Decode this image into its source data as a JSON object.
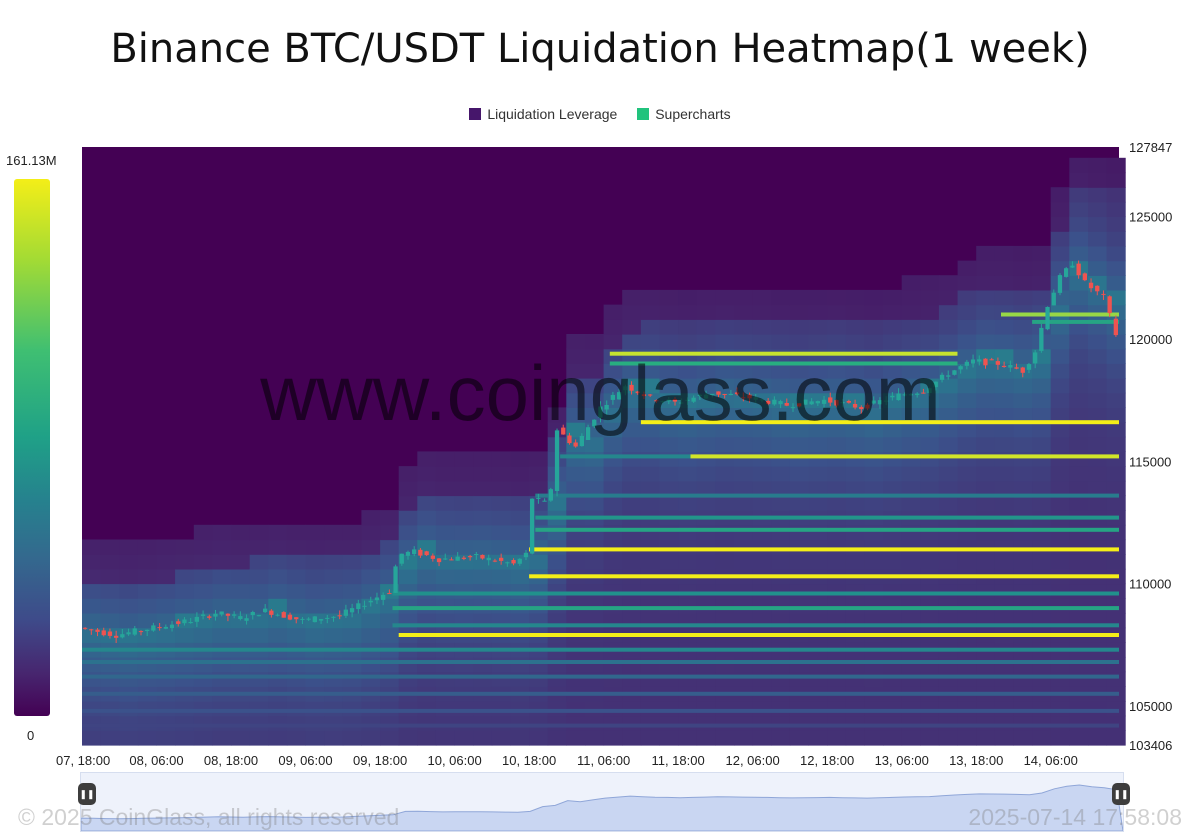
{
  "title": "Binance BTC/USDT Liquidation Heatmap(1 week)",
  "legend": [
    {
      "label": "Liquidation Leverage",
      "color": "#46166b"
    },
    {
      "label": "Supercharts",
      "color": "#21c37d"
    }
  ],
  "color_scale": {
    "max_label": "161.13M",
    "min_label": "0"
  },
  "watermark": "www.coinglass.com",
  "footer": {
    "copyright": "© 2025 CoinGlass, all rights reserved",
    "timestamp": "2025-07-14 17:58:08"
  },
  "colors": {
    "background": "#440154",
    "bull": "#26a69a",
    "bear": "#ef5350",
    "highlight": "#f4ee18"
  },
  "chart_data": {
    "type": "heatmap",
    "title": "Binance BTC/USDT Liquidation Heatmap(1 week)",
    "y_ticks": [
      "127847",
      "125000",
      "120000",
      "115000",
      "110000",
      "105000",
      "103406"
    ],
    "ylim": [
      103406,
      127847
    ],
    "x_ticks": [
      "07, 18:00",
      "08, 06:00",
      "08, 18:00",
      "09, 06:00",
      "09, 18:00",
      "10, 06:00",
      "10, 18:00",
      "11, 06:00",
      "11, 18:00",
      "12, 06:00",
      "12, 18:00",
      "13, 06:00",
      "13, 18:00",
      "14, 06:00"
    ],
    "x_tick_positions": [
      0,
      12,
      24,
      36,
      48,
      60,
      72,
      84,
      96,
      108,
      120,
      132,
      144,
      156
    ],
    "x_range_hours": [
      0,
      167
    ],
    "price_path": [
      {
        "h": 0,
        "p": 108200
      },
      {
        "h": 6,
        "p": 107900
      },
      {
        "h": 12,
        "p": 108200
      },
      {
        "h": 18,
        "p": 108500
      },
      {
        "h": 22,
        "p": 108800
      },
      {
        "h": 26,
        "p": 108600
      },
      {
        "h": 30,
        "p": 108900
      },
      {
        "h": 36,
        "p": 108500
      },
      {
        "h": 42,
        "p": 108700
      },
      {
        "h": 46,
        "p": 109200
      },
      {
        "h": 50,
        "p": 109700
      },
      {
        "h": 51.5,
        "p": 111200
      },
      {
        "h": 54,
        "p": 111300
      },
      {
        "h": 58,
        "p": 111000
      },
      {
        "h": 64,
        "p": 111100
      },
      {
        "h": 70,
        "p": 110800
      },
      {
        "h": 72,
        "p": 111200
      },
      {
        "h": 73,
        "p": 113500
      },
      {
        "h": 75,
        "p": 113300
      },
      {
        "h": 76.5,
        "p": 114200
      },
      {
        "h": 77,
        "p": 116300
      },
      {
        "h": 80,
        "p": 115600
      },
      {
        "h": 84,
        "p": 117200
      },
      {
        "h": 88,
        "p": 118100
      },
      {
        "h": 92,
        "p": 117600
      },
      {
        "h": 96,
        "p": 117400
      },
      {
        "h": 102,
        "p": 117800
      },
      {
        "h": 108,
        "p": 117600
      },
      {
        "h": 114,
        "p": 117300
      },
      {
        "h": 120,
        "p": 117500
      },
      {
        "h": 126,
        "p": 117200
      },
      {
        "h": 132,
        "p": 117700
      },
      {
        "h": 136,
        "p": 117900
      },
      {
        "h": 140,
        "p": 118600
      },
      {
        "h": 144,
        "p": 119100
      },
      {
        "h": 148,
        "p": 119000
      },
      {
        "h": 152,
        "p": 118700
      },
      {
        "h": 154,
        "p": 119500
      },
      {
        "h": 156,
        "p": 121400
      },
      {
        "h": 158,
        "p": 122500
      },
      {
        "h": 160,
        "p": 123100
      },
      {
        "h": 162,
        "p": 122300
      },
      {
        "h": 165,
        "p": 121700
      },
      {
        "h": 167,
        "p": 120200
      }
    ],
    "liquidation_levels": [
      {
        "price": 121000,
        "start_h": 148,
        "end_h": 167,
        "intensity": 0.92
      },
      {
        "price": 120700,
        "start_h": 153,
        "end_h": 167,
        "intensity": 0.7
      },
      {
        "price": 119400,
        "start_h": 85,
        "end_h": 141,
        "intensity": 0.96
      },
      {
        "price": 119000,
        "start_h": 85,
        "end_h": 141,
        "intensity": 0.75
      },
      {
        "price": 116600,
        "start_h": 90,
        "end_h": 167,
        "intensity": 1.0
      },
      {
        "price": 115200,
        "start_h": 98,
        "end_h": 167,
        "intensity": 0.97
      },
      {
        "price": 115200,
        "start_h": 77,
        "end_h": 98,
        "intensity": 0.55
      },
      {
        "price": 113600,
        "start_h": 73,
        "end_h": 167,
        "intensity": 0.5
      },
      {
        "price": 112700,
        "start_h": 73,
        "end_h": 167,
        "intensity": 0.62
      },
      {
        "price": 112200,
        "start_h": 73,
        "end_h": 167,
        "intensity": 0.7
      },
      {
        "price": 111400,
        "start_h": 72,
        "end_h": 167,
        "intensity": 1.0
      },
      {
        "price": 110300,
        "start_h": 72,
        "end_h": 167,
        "intensity": 1.0
      },
      {
        "price": 109600,
        "start_h": 50,
        "end_h": 167,
        "intensity": 0.6
      },
      {
        "price": 109000,
        "start_h": 50,
        "end_h": 167,
        "intensity": 0.7
      },
      {
        "price": 108300,
        "start_h": 50,
        "end_h": 167,
        "intensity": 0.55
      },
      {
        "price": 107900,
        "start_h": 51,
        "end_h": 167,
        "intensity": 1.0
      },
      {
        "price": 107300,
        "start_h": 0,
        "end_h": 167,
        "intensity": 0.55
      },
      {
        "price": 106800,
        "start_h": 0,
        "end_h": 167,
        "intensity": 0.45
      },
      {
        "price": 106200,
        "start_h": 0,
        "end_h": 167,
        "intensity": 0.4
      },
      {
        "price": 105500,
        "start_h": 0,
        "end_h": 167,
        "intensity": 0.35
      },
      {
        "price": 104800,
        "start_h": 0,
        "end_h": 167,
        "intensity": 0.3
      },
      {
        "price": 104200,
        "start_h": 0,
        "end_h": 167,
        "intensity": 0.25
      }
    ]
  }
}
